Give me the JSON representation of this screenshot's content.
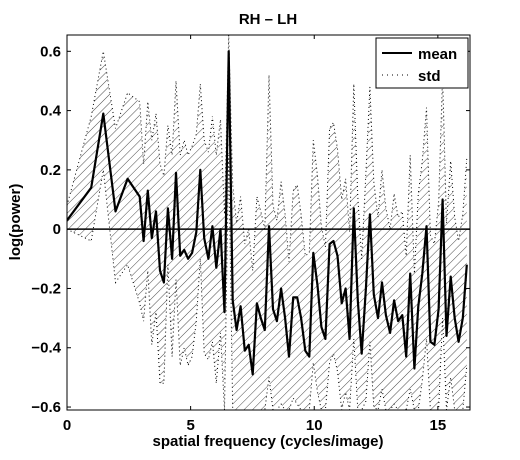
{
  "chart_data": {
    "type": "line",
    "title": "RH – LH",
    "xlabel": "spatial frequency (cycles/image)",
    "ylabel": "log(power)",
    "xlim": [
      0,
      16.3
    ],
    "ylim": [
      -0.61,
      0.655
    ],
    "xticks": [
      0,
      5,
      10,
      15
    ],
    "xtick_labels": [
      "0",
      "5",
      "10",
      "15"
    ],
    "yticks": [
      -0.6,
      -0.4,
      -0.2,
      0,
      0.2,
      0.4,
      0.6
    ],
    "ytick_labels": [
      "−0.6",
      "−0.4",
      "−0.2",
      "0",
      "0.2",
      "0.4",
      "0.6"
    ],
    "grid": false,
    "legend": {
      "position": "top-right",
      "entries": [
        "mean",
        "std"
      ]
    },
    "reference_line_y": 0,
    "colors": {
      "line": "#000000",
      "hatch": "#000000",
      "background": "#ffffff"
    },
    "series": [
      {
        "name": "mean",
        "style": "solid",
        "x": [
          0,
          0.98,
          1.47,
          1.96,
          2.45,
          2.94,
          3.1,
          3.27,
          3.43,
          3.6,
          3.76,
          3.92,
          4.08,
          4.25,
          4.41,
          4.58,
          4.74,
          4.9,
          5.06,
          5.23,
          5.39,
          5.55,
          5.72,
          5.88,
          6.04,
          6.21,
          6.37,
          6.54,
          6.7,
          6.86,
          7.02,
          7.19,
          7.35,
          7.51,
          7.68,
          7.84,
          8.0,
          8.17,
          8.33,
          8.49,
          8.66,
          8.82,
          8.98,
          9.15,
          9.31,
          9.47,
          9.64,
          9.8,
          9.96,
          10.13,
          10.29,
          10.45,
          10.62,
          10.78,
          10.94,
          11.11,
          11.27,
          11.43,
          11.6,
          11.76,
          11.92,
          12.09,
          12.25,
          12.41,
          12.58,
          12.74,
          12.9,
          13.07,
          13.23,
          13.39,
          13.56,
          13.72,
          13.88,
          14.05,
          14.21,
          14.37,
          14.54,
          14.7,
          14.86,
          15.03,
          15.19,
          15.35,
          15.52,
          15.68,
          15.84,
          16.01,
          16.17
        ],
        "y": [
          0.03,
          0.14,
          0.39,
          0.06,
          0.17,
          0.11,
          -0.04,
          0.13,
          -0.03,
          0.06,
          -0.14,
          -0.18,
          0.07,
          -0.1,
          0.19,
          -0.09,
          -0.07,
          -0.1,
          -0.08,
          -0.01,
          0.2,
          -0.03,
          -0.1,
          0.01,
          -0.13,
          0.0,
          -0.28,
          0.6,
          -0.24,
          -0.34,
          -0.26,
          -0.41,
          -0.39,
          -0.49,
          -0.25,
          -0.3,
          -0.34,
          0.01,
          -0.27,
          -0.31,
          -0.2,
          -0.3,
          -0.43,
          -0.23,
          -0.23,
          -0.3,
          -0.41,
          -0.43,
          -0.08,
          -0.19,
          -0.33,
          -0.37,
          -0.05,
          -0.04,
          -0.09,
          -0.25,
          -0.2,
          -0.37,
          0.07,
          -0.24,
          -0.42,
          -0.2,
          0.05,
          -0.22,
          -0.3,
          -0.18,
          -0.29,
          -0.35,
          -0.24,
          -0.31,
          -0.29,
          -0.43,
          -0.15,
          -0.47,
          -0.26,
          -0.15,
          0.01,
          -0.38,
          -0.39,
          -0.27,
          0.1,
          -0.36,
          -0.16,
          -0.3,
          -0.38,
          -0.3,
          -0.12
        ]
      },
      {
        "name": "std",
        "style": "dotted",
        "lower": [
          0.0,
          -0.04,
          0.2,
          -0.18,
          -0.12,
          -0.25,
          -0.31,
          -0.14,
          -0.39,
          -0.28,
          -0.52,
          -0.52,
          -0.12,
          -0.43,
          -0.17,
          -0.46,
          -0.4,
          -0.46,
          -0.43,
          -0.31,
          -0.1,
          -0.42,
          -0.44,
          -0.38,
          -0.52,
          -0.35,
          -0.61,
          0.25,
          -0.61,
          -0.61,
          -0.61,
          -0.61,
          -0.61,
          -0.61,
          -0.61,
          -0.61,
          -0.61,
          -0.5,
          -0.61,
          -0.61,
          -0.59,
          -0.61,
          -0.61,
          -0.57,
          -0.59,
          -0.61,
          -0.61,
          -0.61,
          -0.45,
          -0.55,
          -0.61,
          -0.61,
          -0.45,
          -0.42,
          -0.48,
          -0.61,
          -0.55,
          -0.61,
          -0.37,
          -0.61,
          -0.61,
          -0.58,
          -0.38,
          -0.6,
          -0.61,
          -0.54,
          -0.61,
          -0.61,
          -0.59,
          -0.61,
          -0.61,
          -0.61,
          -0.54,
          -0.61,
          -0.61,
          -0.51,
          -0.37,
          -0.61,
          -0.61,
          -0.61,
          -0.3,
          -0.61,
          -0.5,
          -0.61,
          -0.61,
          -0.61,
          -0.46
        ],
        "upper": [
          0.08,
          0.38,
          0.6,
          0.34,
          0.46,
          0.43,
          0.22,
          0.43,
          0.3,
          0.39,
          0.22,
          0.18,
          0.35,
          0.25,
          0.5,
          0.25,
          0.3,
          0.25,
          0.28,
          0.32,
          0.49,
          0.3,
          0.26,
          0.38,
          0.25,
          0.37,
          0.05,
          0.655,
          0.15,
          0.02,
          0.11,
          -0.05,
          0.0,
          -0.14,
          0.11,
          0.06,
          0.0,
          0.52,
          0.08,
          0.03,
          0.16,
          0.05,
          -0.11,
          0.13,
          0.15,
          0.05,
          -0.09,
          -0.08,
          0.3,
          0.18,
          0.01,
          -0.06,
          0.34,
          0.36,
          0.27,
          0.1,
          0.17,
          -0.01,
          0.49,
          0.11,
          -0.1,
          0.19,
          0.48,
          0.16,
          0.04,
          0.2,
          0.07,
          0.0,
          0.12,
          0.04,
          0.06,
          -0.09,
          0.25,
          -0.15,
          0.12,
          0.23,
          0.41,
          -0.02,
          -0.05,
          0.09,
          0.52,
          0.02,
          0.23,
          0.04,
          -0.04,
          0.05,
          0.24
        ]
      }
    ]
  }
}
